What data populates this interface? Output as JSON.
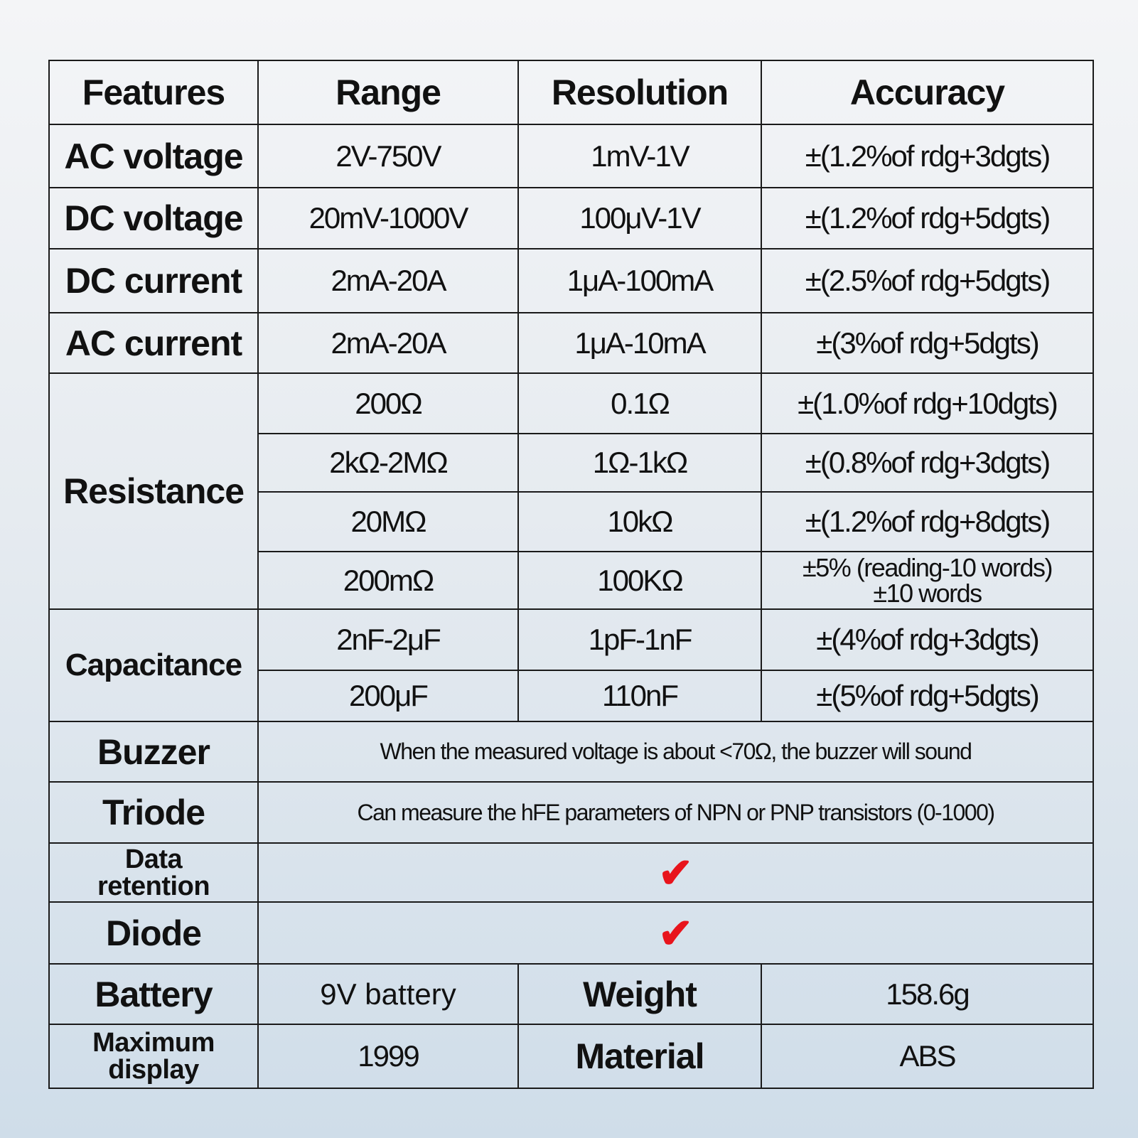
{
  "headers": {
    "features": "Features",
    "range": "Range",
    "resolution": "Resolution",
    "accuracy": "Accuracy"
  },
  "rows": [
    {
      "feature": "AC voltage",
      "range": "2V-750V",
      "resolution": "1mV-1V",
      "accuracy": "±(1.2%of rdg+3dgts)"
    },
    {
      "feature": "DC voltage",
      "range": "20mV-1000V",
      "resolution": "100μV-1V",
      "accuracy": "±(1.2%of rdg+5dgts)"
    },
    {
      "feature": "DC current",
      "range": "2mA-20A",
      "resolution": "1μA-100mA",
      "accuracy": "±(2.5%of rdg+5dgts)"
    },
    {
      "feature": "AC current",
      "range": "2mA-20A",
      "resolution": "1μA-10mA",
      "accuracy": "±(3%of rdg+5dgts)"
    }
  ],
  "resistance": {
    "feature": "Resistance",
    "rows": [
      {
        "range": "200Ω",
        "resolution": "0.1Ω",
        "accuracy": "±(1.0%of rdg+10dgts)"
      },
      {
        "range": "2kΩ-2MΩ",
        "resolution": "1Ω-1kΩ",
        "accuracy": "±(0.8%of rdg+3dgts)"
      },
      {
        "range": "20MΩ",
        "resolution": "10kΩ",
        "accuracy": "±(1.2%of rdg+8dgts)"
      },
      {
        "range": "200mΩ",
        "resolution": "100KΩ",
        "accuracy_line1": "±5% (reading-10 words)",
        "accuracy_line2": "±10 words"
      }
    ]
  },
  "capacitance": {
    "feature": "Capacitance",
    "rows": [
      {
        "range": "2nF-2μF",
        "resolution": "1pF-1nF",
        "accuracy": "±(4%of rdg+3dgts)"
      },
      {
        "range": "200μF",
        "resolution": "110nF",
        "accuracy": "±(5%of rdg+5dgts)"
      }
    ]
  },
  "buzzer": {
    "feature": "Buzzer",
    "text": "When the measured voltage is about <70Ω, the buzzer will sound"
  },
  "triode": {
    "feature": "Triode",
    "text": "Can measure the hFE parameters of NPN or PNP transistors (0-1000)"
  },
  "data_retention": {
    "feature_line1": "Data",
    "feature_line2": "retention",
    "supported": true
  },
  "diode": {
    "feature": "Diode",
    "supported": true
  },
  "battery": {
    "feature": "Battery",
    "value": "9V battery",
    "label2": "Weight",
    "value2": "158.6g"
  },
  "max_display": {
    "feature_line1": "Maximum",
    "feature_line2": "display",
    "value": "1999",
    "label2": "Material",
    "value2": "ABS"
  },
  "icons": {
    "check": "check-icon",
    "check_color": "#e8141c"
  }
}
